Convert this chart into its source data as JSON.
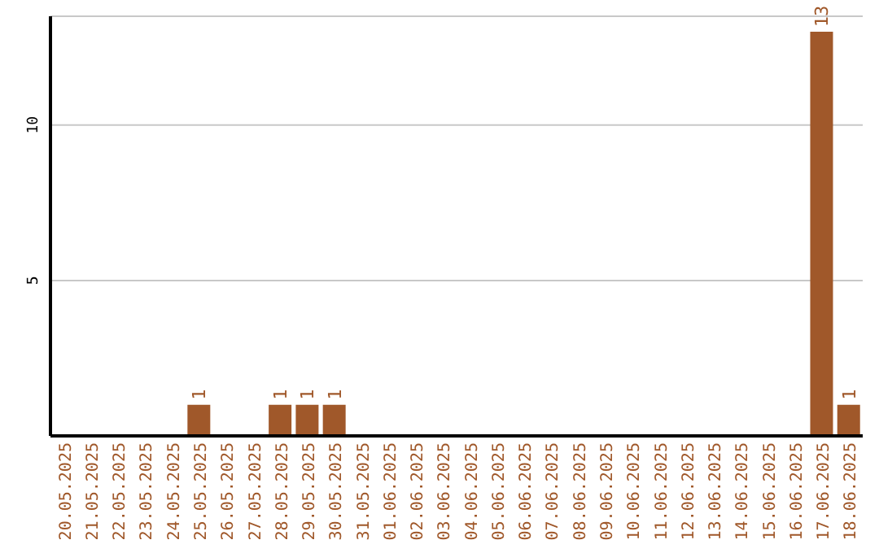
{
  "chart_data": {
    "type": "bar",
    "categories": [
      "20.05.2025",
      "21.05.2025",
      "22.05.2025",
      "23.05.2025",
      "24.05.2025",
      "25.05.2025",
      "26.05.2025",
      "27.05.2025",
      "28.05.2025",
      "29.05.2025",
      "30.05.2025",
      "31.05.2025",
      "01.06.2025",
      "02.06.2025",
      "03.06.2025",
      "04.06.2025",
      "05.06.2025",
      "06.06.2025",
      "07.06.2025",
      "08.06.2025",
      "09.06.2025",
      "10.06.2025",
      "11.06.2025",
      "12.06.2025",
      "13.06.2025",
      "14.06.2025",
      "15.06.2025",
      "16.06.2025",
      "17.06.2025",
      "18.06.2025"
    ],
    "values": [
      0,
      0,
      0,
      0,
      0,
      1,
      0,
      0,
      1,
      1,
      1,
      0,
      0,
      0,
      0,
      0,
      0,
      0,
      0,
      0,
      0,
      0,
      0,
      0,
      0,
      0,
      0,
      0,
      13,
      1
    ],
    "value_labels": [
      null,
      null,
      null,
      null,
      null,
      "1",
      null,
      null,
      "1",
      "1",
      "1",
      null,
      null,
      null,
      null,
      null,
      null,
      null,
      null,
      null,
      null,
      null,
      null,
      null,
      null,
      null,
      null,
      null,
      "13",
      "1"
    ],
    "color": "#a0582a",
    "ylim": [
      0,
      13.5
    ],
    "yticks": [
      5,
      10
    ],
    "grid": "y",
    "legend": false
  }
}
